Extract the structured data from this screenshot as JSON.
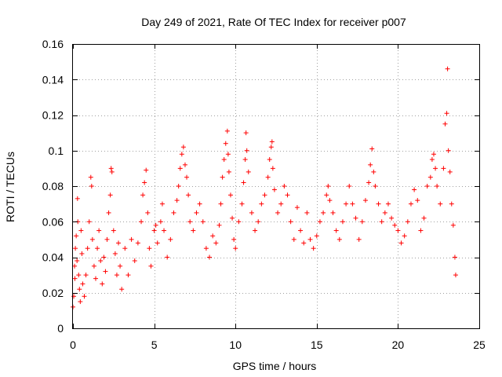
{
  "chart_data": {
    "type": "scatter",
    "title": "Day 249 of 2021, Rate Of TEC Index for receiver p007",
    "xlabel": "GPS time / hours",
    "ylabel": "ROTI / TECUs",
    "xlim": [
      0,
      25
    ],
    "ylim": [
      0,
      0.16
    ],
    "xticks": [
      0,
      5,
      10,
      15,
      20,
      25
    ],
    "yticks": [
      0,
      0.02,
      0.04,
      0.06,
      0.08,
      0.1,
      0.12,
      0.14,
      0.16
    ],
    "xtick_labels": [
      "0",
      "5",
      "10",
      "15",
      "20",
      "25"
    ],
    "ytick_labels": [
      "0",
      "0.02",
      "0.04",
      "0.06",
      "0.08",
      "0.1",
      "0.12",
      "0.14",
      "0.16"
    ],
    "grid": true,
    "marker": "+",
    "color": "#ff0000",
    "series": [
      {
        "points": [
          [
            0.0,
            0.012
          ],
          [
            0.05,
            0.018
          ],
          [
            0.1,
            0.035
          ],
          [
            0.12,
            0.028
          ],
          [
            0.15,
            0.045
          ],
          [
            0.2,
            0.052
          ],
          [
            0.25,
            0.038
          ],
          [
            0.28,
            0.073
          ],
          [
            0.3,
            0.06
          ],
          [
            0.35,
            0.03
          ],
          [
            0.4,
            0.022
          ],
          [
            0.45,
            0.015
          ],
          [
            0.5,
            0.055
          ],
          [
            0.55,
            0.042
          ],
          [
            0.6,
            0.025
          ],
          [
            0.7,
            0.018
          ],
          [
            0.8,
            0.03
          ],
          [
            0.9,
            0.045
          ],
          [
            1.0,
            0.06
          ],
          [
            1.1,
            0.085
          ],
          [
            1.15,
            0.08
          ],
          [
            1.2,
            0.05
          ],
          [
            1.3,
            0.035
          ],
          [
            1.4,
            0.028
          ],
          [
            1.5,
            0.045
          ],
          [
            1.6,
            0.055
          ],
          [
            1.7,
            0.038
          ],
          [
            1.8,
            0.025
          ],
          [
            1.9,
            0.04
          ],
          [
            2.0,
            0.032
          ],
          [
            2.1,
            0.05
          ],
          [
            2.2,
            0.065
          ],
          [
            2.3,
            0.075
          ],
          [
            2.35,
            0.09
          ],
          [
            2.4,
            0.088
          ],
          [
            2.5,
            0.055
          ],
          [
            2.6,
            0.042
          ],
          [
            2.7,
            0.03
          ],
          [
            2.8,
            0.048
          ],
          [
            2.9,
            0.035
          ],
          [
            3.0,
            0.022
          ],
          [
            3.2,
            0.045
          ],
          [
            3.4,
            0.03
          ],
          [
            3.6,
            0.05
          ],
          [
            3.8,
            0.038
          ],
          [
            4.0,
            0.048
          ],
          [
            4.2,
            0.06
          ],
          [
            4.3,
            0.075
          ],
          [
            4.4,
            0.082
          ],
          [
            4.5,
            0.089
          ],
          [
            4.6,
            0.065
          ],
          [
            4.7,
            0.045
          ],
          [
            4.8,
            0.035
          ],
          [
            5.0,
            0.055
          ],
          [
            5.1,
            0.058
          ],
          [
            5.2,
            0.048
          ],
          [
            5.4,
            0.06
          ],
          [
            5.5,
            0.07
          ],
          [
            5.6,
            0.055
          ],
          [
            5.8,
            0.04
          ],
          [
            6.0,
            0.05
          ],
          [
            6.2,
            0.065
          ],
          [
            6.4,
            0.072
          ],
          [
            6.5,
            0.08
          ],
          [
            6.6,
            0.09
          ],
          [
            6.7,
            0.098
          ],
          [
            6.8,
            0.102
          ],
          [
            6.9,
            0.092
          ],
          [
            7.0,
            0.085
          ],
          [
            7.1,
            0.075
          ],
          [
            7.2,
            0.06
          ],
          [
            7.4,
            0.055
          ],
          [
            7.6,
            0.065
          ],
          [
            7.8,
            0.07
          ],
          [
            8.0,
            0.06
          ],
          [
            8.2,
            0.045
          ],
          [
            8.4,
            0.04
          ],
          [
            8.6,
            0.052
          ],
          [
            8.8,
            0.048
          ],
          [
            9.0,
            0.058
          ],
          [
            9.1,
            0.07
          ],
          [
            9.2,
            0.085
          ],
          [
            9.3,
            0.095
          ],
          [
            9.4,
            0.104
          ],
          [
            9.5,
            0.111
          ],
          [
            9.55,
            0.098
          ],
          [
            9.6,
            0.088
          ],
          [
            9.7,
            0.075
          ],
          [
            9.8,
            0.062
          ],
          [
            9.9,
            0.05
          ],
          [
            10.0,
            0.045
          ],
          [
            10.2,
            0.06
          ],
          [
            10.4,
            0.07
          ],
          [
            10.5,
            0.082
          ],
          [
            10.6,
            0.095
          ],
          [
            10.65,
            0.11
          ],
          [
            10.7,
            0.1
          ],
          [
            10.8,
            0.088
          ],
          [
            11.0,
            0.065
          ],
          [
            11.2,
            0.055
          ],
          [
            11.4,
            0.06
          ],
          [
            11.6,
            0.07
          ],
          [
            11.8,
            0.075
          ],
          [
            12.0,
            0.085
          ],
          [
            12.1,
            0.095
          ],
          [
            12.2,
            0.102
          ],
          [
            12.25,
            0.105
          ],
          [
            12.3,
            0.09
          ],
          [
            12.4,
            0.078
          ],
          [
            12.6,
            0.065
          ],
          [
            12.8,
            0.07
          ],
          [
            13.0,
            0.08
          ],
          [
            13.2,
            0.075
          ],
          [
            13.4,
            0.06
          ],
          [
            13.6,
            0.05
          ],
          [
            13.8,
            0.068
          ],
          [
            14.0,
            0.055
          ],
          [
            14.2,
            0.048
          ],
          [
            14.4,
            0.065
          ],
          [
            14.6,
            0.05
          ],
          [
            14.8,
            0.045
          ],
          [
            15.0,
            0.052
          ],
          [
            15.2,
            0.06
          ],
          [
            15.4,
            0.065
          ],
          [
            15.6,
            0.075
          ],
          [
            15.7,
            0.08
          ],
          [
            15.8,
            0.072
          ],
          [
            16.0,
            0.065
          ],
          [
            16.2,
            0.055
          ],
          [
            16.4,
            0.05
          ],
          [
            16.6,
            0.06
          ],
          [
            16.8,
            0.07
          ],
          [
            17.0,
            0.08
          ],
          [
            17.2,
            0.07
          ],
          [
            17.4,
            0.062
          ],
          [
            17.6,
            0.05
          ],
          [
            17.8,
            0.06
          ],
          [
            18.0,
            0.072
          ],
          [
            18.2,
            0.082
          ],
          [
            18.3,
            0.092
          ],
          [
            18.4,
            0.101
          ],
          [
            18.5,
            0.088
          ],
          [
            18.6,
            0.08
          ],
          [
            18.8,
            0.07
          ],
          [
            19.0,
            0.06
          ],
          [
            19.2,
            0.065
          ],
          [
            19.4,
            0.07
          ],
          [
            19.6,
            0.062
          ],
          [
            19.8,
            0.058
          ],
          [
            20.0,
            0.055
          ],
          [
            20.2,
            0.048
          ],
          [
            20.4,
            0.052
          ],
          [
            20.6,
            0.06
          ],
          [
            20.8,
            0.07
          ],
          [
            21.0,
            0.078
          ],
          [
            21.2,
            0.072
          ],
          [
            21.4,
            0.055
          ],
          [
            21.6,
            0.062
          ],
          [
            21.8,
            0.08
          ],
          [
            22.0,
            0.085
          ],
          [
            22.1,
            0.095
          ],
          [
            22.2,
            0.098
          ],
          [
            22.3,
            0.09
          ],
          [
            22.4,
            0.08
          ],
          [
            22.6,
            0.07
          ],
          [
            22.8,
            0.09
          ],
          [
            22.9,
            0.115
          ],
          [
            23.0,
            0.121
          ],
          [
            23.05,
            0.146
          ],
          [
            23.1,
            0.1
          ],
          [
            23.2,
            0.088
          ],
          [
            23.3,
            0.07
          ],
          [
            23.4,
            0.058
          ],
          [
            23.5,
            0.04
          ],
          [
            23.55,
            0.03
          ]
        ]
      }
    ]
  }
}
